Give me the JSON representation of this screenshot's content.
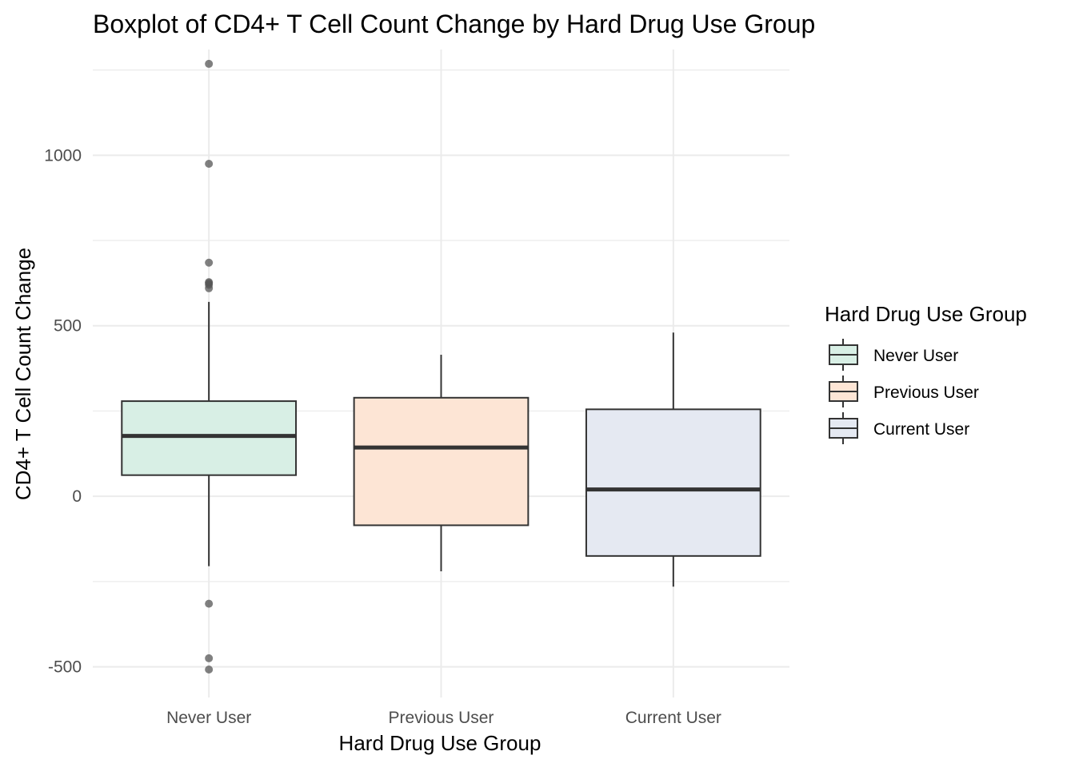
{
  "chart_data": {
    "type": "box",
    "title": "Boxplot of CD4+ T Cell Count Change by Hard Drug Use Group",
    "xlabel": "Hard Drug Use Group",
    "ylabel": "CD4+ T Cell Count Change",
    "ylim": [
      -590,
      1310
    ],
    "yticks": [
      -500,
      0,
      500,
      1000
    ],
    "y_minor_ticks": [
      -250,
      250,
      750,
      1250
    ],
    "grid": true,
    "legend": {
      "title": "Hard Drug Use Group",
      "position": "right",
      "entries": [
        "Never User",
        "Previous User",
        "Current User"
      ]
    },
    "colors": {
      "Never User": "#d8efe5",
      "Previous User": "#fde5d5",
      "Current User": "#e5e9f2",
      "box_border": "#333333",
      "outlier": "#555555",
      "grid": "#ebebeb"
    },
    "categories": [
      "Never User",
      "Previous User",
      "Current User"
    ],
    "series": [
      {
        "name": "Never User",
        "whisker_low": -205,
        "q1": 62,
        "median": 177,
        "q3": 279,
        "whisker_high": 570,
        "outliers": [
          1268,
          975,
          685,
          628,
          625,
          620,
          610,
          -315,
          -475,
          -508
        ]
      },
      {
        "name": "Previous User",
        "whisker_low": -220,
        "q1": -85,
        "median": 143,
        "q3": 289,
        "whisker_high": 415,
        "outliers": []
      },
      {
        "name": "Current User",
        "whisker_low": -265,
        "q1": -175,
        "median": 20,
        "q3": 255,
        "whisker_high": 480,
        "outliers": []
      }
    ]
  }
}
